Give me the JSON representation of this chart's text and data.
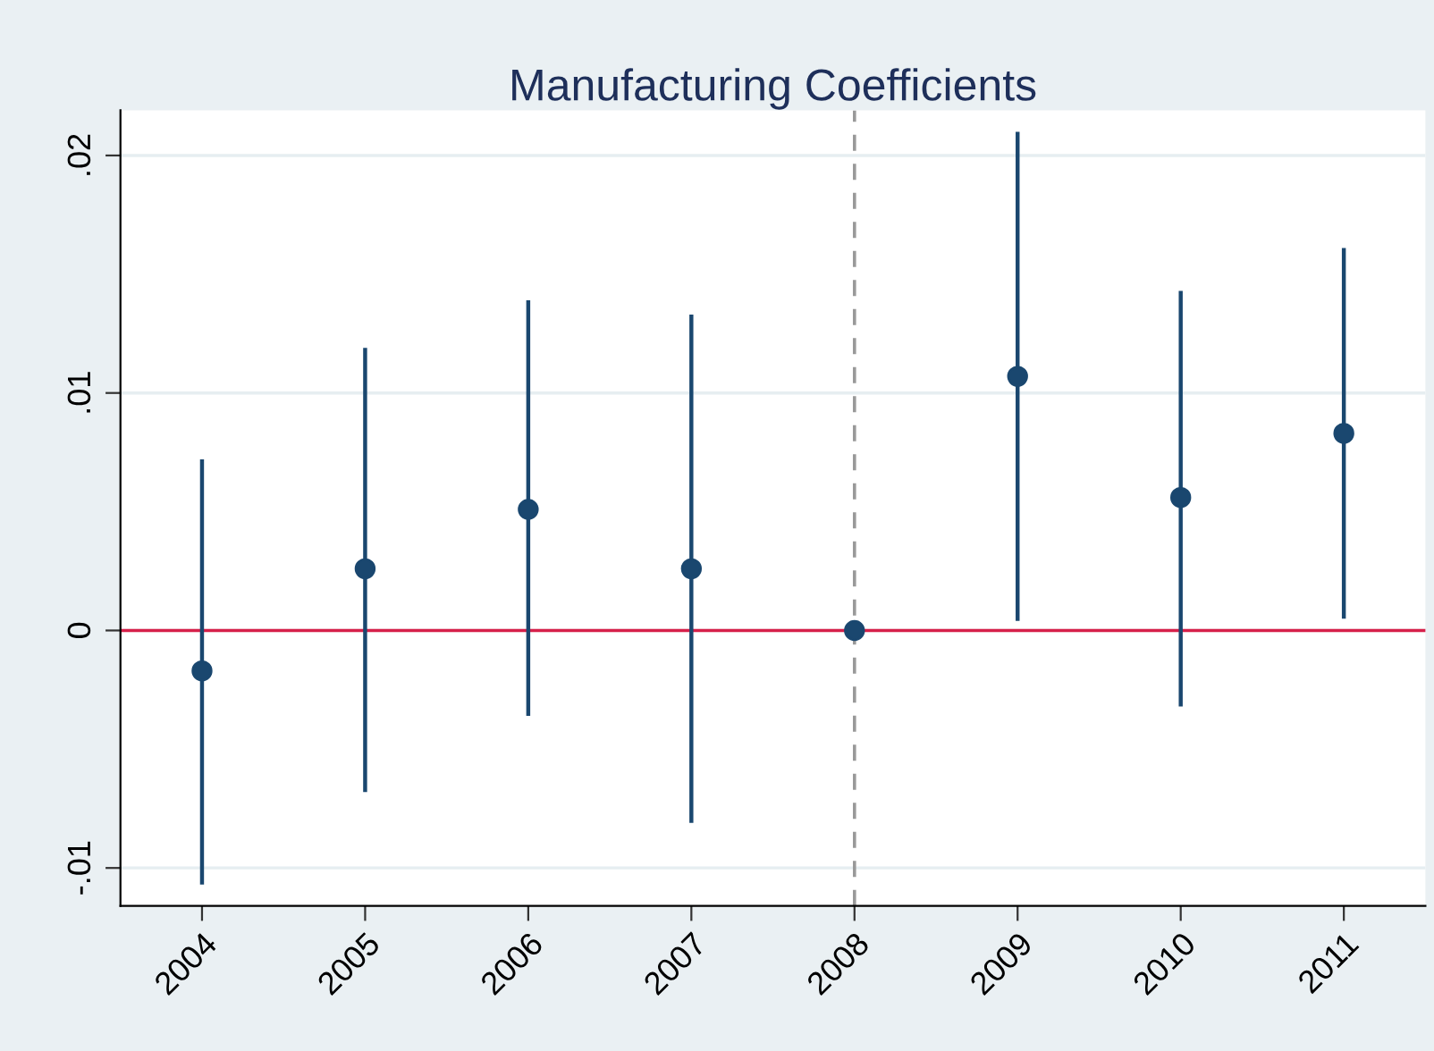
{
  "chart_data": {
    "type": "scatter",
    "title": "Manufacturing Coefficients",
    "x": [
      2004,
      2005,
      2006,
      2007,
      2008,
      2009,
      2010,
      2011
    ],
    "series": [
      {
        "color": "#1a476f",
        "values": [
          -0.0017,
          0.0026,
          0.0051,
          0.0026,
          0,
          0.0107,
          0.0056,
          0.0083
        ],
        "errors": [
          [
            -0.0107,
            0.0072
          ],
          [
            -0.0068,
            0.0119
          ],
          [
            -0.0036,
            0.0139
          ],
          [
            -0.0081,
            0.0133
          ],
          null,
          [
            0.0004,
            0.021
          ],
          [
            -0.0032,
            0.0143
          ],
          [
            0.0005,
            0.0161
          ]
        ]
      }
    ],
    "marker": "circle",
    "xlim": [
      2003.5,
      2011.5
    ],
    "xticks": [
      2004,
      2005,
      2006,
      2007,
      2008,
      2009,
      2010,
      2011
    ],
    "ylim": [
      -0.0116,
      0.0219
    ],
    "yticks": [
      {
        "value": -0.01,
        "label": "-.01"
      },
      {
        "value": 0,
        "label": "0"
      },
      {
        "value": 0.01,
        "label": ".01"
      },
      {
        "value": 0.02,
        "label": ".02"
      }
    ],
    "grid": "y",
    "legend": false,
    "ref_lines": [
      {
        "axis": "y",
        "value": 0,
        "color": "#d6204a",
        "line_style": "solid"
      },
      {
        "axis": "x",
        "value": 2008,
        "color": "#999999",
        "line_style": "dashed"
      }
    ]
  }
}
